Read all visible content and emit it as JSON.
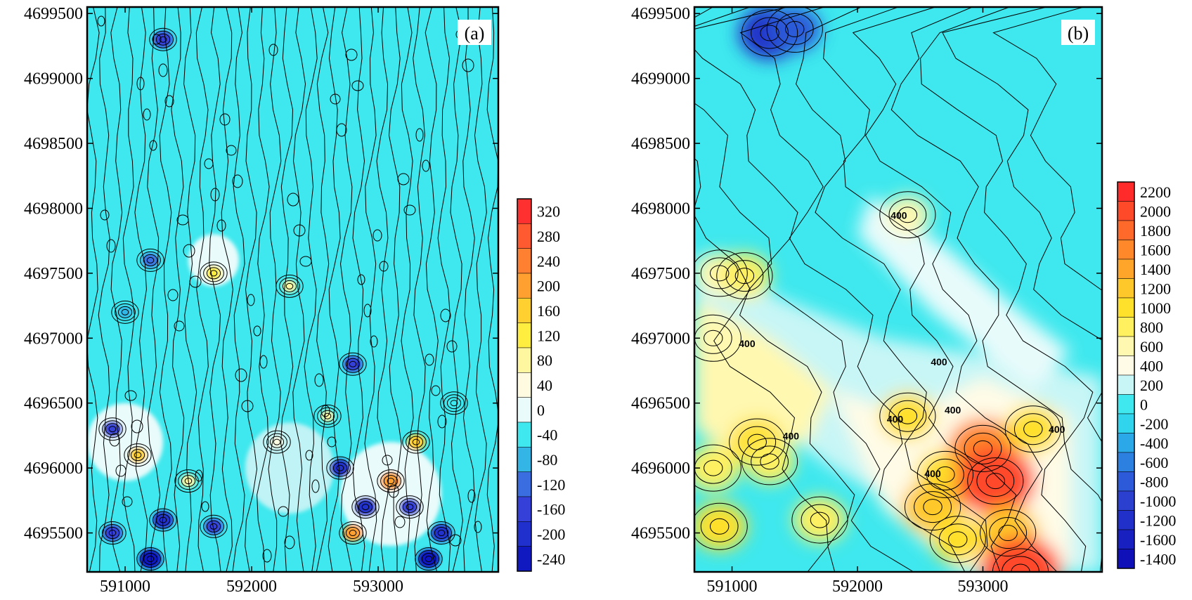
{
  "chart_data": [
    {
      "type": "contour",
      "panel_label": "(a)",
      "x_ticks": [
        591000,
        592000,
        593000
      ],
      "y_ticks": [
        4695500,
        4696000,
        4696500,
        4697000,
        4697500,
        4698000,
        4698500,
        4699000,
        4699500
      ],
      "xlim": [
        590700,
        593950
      ],
      "ylim": [
        4695200,
        4699550
      ],
      "colorbar_levels": [
        320,
        280,
        240,
        200,
        160,
        120,
        80,
        40,
        0,
        -40,
        -80,
        -120,
        -160,
        -200,
        -240
      ],
      "colorbar_colors": [
        "#ff3030",
        "#ff5a30",
        "#ff8030",
        "#ffa030",
        "#ffd030",
        "#ffee40",
        "#fff6a0",
        "#fffbe0",
        "#e9fbfb",
        "#3ee8ee",
        "#33b6e6",
        "#3a6ee0",
        "#3440d8",
        "#2030cc",
        "#1018c0"
      ],
      "contour_labels": [],
      "hotspots": [
        {
          "x": 591300,
          "y": 4699300,
          "v": -180
        },
        {
          "x": 591200,
          "y": 4697600,
          "v": -120
        },
        {
          "x": 591000,
          "y": 4697200,
          "v": -80
        },
        {
          "x": 591700,
          "y": 4697500,
          "v": 120
        },
        {
          "x": 592300,
          "y": 4697400,
          "v": 80
        },
        {
          "x": 592800,
          "y": 4696800,
          "v": -160
        },
        {
          "x": 590900,
          "y": 4696300,
          "v": -160
        },
        {
          "x": 591100,
          "y": 4696100,
          "v": 140
        },
        {
          "x": 591500,
          "y": 4695900,
          "v": 90
        },
        {
          "x": 591300,
          "y": 4695600,
          "v": -200
        },
        {
          "x": 590900,
          "y": 4695500,
          "v": -170
        },
        {
          "x": 591700,
          "y": 4695550,
          "v": -150
        },
        {
          "x": 591200,
          "y": 4695300,
          "v": -240
        },
        {
          "x": 592700,
          "y": 4696000,
          "v": -200
        },
        {
          "x": 593100,
          "y": 4695900,
          "v": 200
        },
        {
          "x": 592900,
          "y": 4695700,
          "v": -220
        },
        {
          "x": 593250,
          "y": 4695700,
          "v": -180
        },
        {
          "x": 592800,
          "y": 4695500,
          "v": 180
        },
        {
          "x": 593500,
          "y": 4695500,
          "v": -200
        },
        {
          "x": 593400,
          "y": 4695300,
          "v": -230
        },
        {
          "x": 593300,
          "y": 4696200,
          "v": 160
        },
        {
          "x": 592600,
          "y": 4696400,
          "v": 60
        },
        {
          "x": 592200,
          "y": 4696200,
          "v": 50
        },
        {
          "x": 593600,
          "y": 4696500,
          "v": -60
        }
      ]
    },
    {
      "type": "contour",
      "panel_label": "(b)",
      "x_ticks": [
        591000,
        592000,
        593000
      ],
      "y_ticks": [
        4695500,
        4696000,
        4696500,
        4697000,
        4697500,
        4698000,
        4698500,
        4699000,
        4699500
      ],
      "xlim": [
        590700,
        593950
      ],
      "ylim": [
        4695200,
        4699550
      ],
      "colorbar_levels": [
        2200,
        2000,
        1800,
        1600,
        1400,
        1200,
        1000,
        800,
        600,
        400,
        200,
        0,
        -200,
        -400,
        -600,
        -800,
        -1000,
        -1200,
        -1600,
        -1400
      ],
      "colorbar_colors": [
        "#ff2a2a",
        "#ff4a2a",
        "#ff6a2a",
        "#ff882a",
        "#ffa62a",
        "#ffc82a",
        "#ffe02a",
        "#fff060",
        "#fff8b0",
        "#fffbe6",
        "#c8f6f6",
        "#3ee8ee",
        "#30d4ec",
        "#2aa8e8",
        "#2c80e0",
        "#2c5ad8",
        "#2c40d0",
        "#2030c8",
        "#1820c0",
        "#1010b8"
      ],
      "contour_labels": [
        {
          "text": "400",
          "x": 592330,
          "y": 4697920
        },
        {
          "text": "400",
          "x": 591120,
          "y": 4696930
        },
        {
          "text": "400",
          "x": 592650,
          "y": 4696790
        },
        {
          "text": "400",
          "x": 592300,
          "y": 4696350
        },
        {
          "text": "400",
          "x": 592760,
          "y": 4696420
        },
        {
          "text": "400",
          "x": 593590,
          "y": 4696270
        },
        {
          "text": "400",
          "x": 591470,
          "y": 4696220
        },
        {
          "text": "400",
          "x": 592600,
          "y": 4695930
        }
      ],
      "hotspots": [
        {
          "x": 591300,
          "y": 4699350,
          "v": -1200
        },
        {
          "x": 591500,
          "y": 4699380,
          "v": -800
        },
        {
          "x": 590850,
          "y": 4696000,
          "v": 800
        },
        {
          "x": 591200,
          "y": 4696200,
          "v": 900
        },
        {
          "x": 591300,
          "y": 4696050,
          "v": 700
        },
        {
          "x": 590900,
          "y": 4695550,
          "v": 900
        },
        {
          "x": 591700,
          "y": 4695600,
          "v": 800
        },
        {
          "x": 592400,
          "y": 4696400,
          "v": 900
        },
        {
          "x": 592700,
          "y": 4695950,
          "v": 1000
        },
        {
          "x": 592600,
          "y": 4695700,
          "v": 1200
        },
        {
          "x": 593000,
          "y": 4696150,
          "v": 1500
        },
        {
          "x": 593100,
          "y": 4695900,
          "v": 1900
        },
        {
          "x": 593200,
          "y": 4695500,
          "v": 1200
        },
        {
          "x": 593400,
          "y": 4696300,
          "v": 900
        },
        {
          "x": 593300,
          "y": 4695200,
          "v": 2000
        },
        {
          "x": 592800,
          "y": 4695450,
          "v": 900
        },
        {
          "x": 590900,
          "y": 4697500,
          "v": 600
        },
        {
          "x": 590850,
          "y": 4697000,
          "v": 500
        },
        {
          "x": 592400,
          "y": 4697950,
          "v": 500
        },
        {
          "x": 591100,
          "y": 4697480,
          "v": 800
        }
      ]
    }
  ]
}
